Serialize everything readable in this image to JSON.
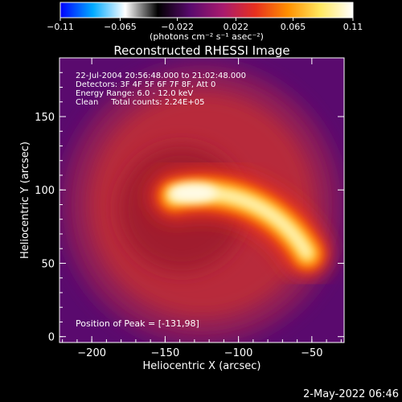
{
  "chart_data": {
    "type": "heatmap",
    "title": "Reconstructed RHESSI Image",
    "xlabel": "Heliocentric X (arcsec)",
    "ylabel": "Heliocentric Y (arcsec)",
    "xlim": [
      -222,
      -28
    ],
    "ylim": [
      -4,
      190
    ],
    "x_ticks": [
      -200,
      -150,
      -100,
      -50
    ],
    "x_tick_labels": [
      "−200",
      "−150",
      "−100",
      "−50"
    ],
    "y_ticks": [
      0,
      50,
      100,
      150
    ],
    "y_tick_labels": [
      "0",
      "50",
      "100",
      "150"
    ],
    "colorbar": {
      "range": [
        -0.11,
        0.11
      ],
      "ticks": [
        -0.11,
        -0.065,
        -0.022,
        0.022,
        0.065,
        0.11
      ],
      "tick_labels": [
        "−0.11",
        "−0.065",
        "−0.022",
        "0.022",
        "0.065",
        "0.11"
      ],
      "unit_label": "(photons cm⁻² s⁻¹ asec⁻²)",
      "stops": [
        "#0000ff",
        "#00aaff",
        "#ffffff",
        "#000000",
        "#5a0a6e",
        "#a81a6e",
        "#e8301e",
        "#ff9000",
        "#ffe860",
        "#ffffff"
      ]
    },
    "annotations": [
      "22-Jul-2004 20:56:48.000 to 21:02:48.000",
      "Detectors: 3F 4F 5F 6F 7F 8F, Att 0",
      "Energy Range: 6.0 - 12.0 keV",
      "Clean     Total counts: 2.24E+05"
    ],
    "peak_label": "Position of Peak = [-131,98]",
    "peak": {
      "x": -131,
      "y": 98
    },
    "arc_source": {
      "center": [
        -125,
        15
      ],
      "radius_arcsec": 83,
      "angle_start_deg": 103,
      "angle_end_deg": 30,
      "peak_value": 0.11
    },
    "background_halo": {
      "center": [
        -125,
        90
      ],
      "radius_arcsec": 95,
      "value": 0.03
    },
    "grid": false
  },
  "footer": {
    "date": "2-May-2022 06:46"
  }
}
